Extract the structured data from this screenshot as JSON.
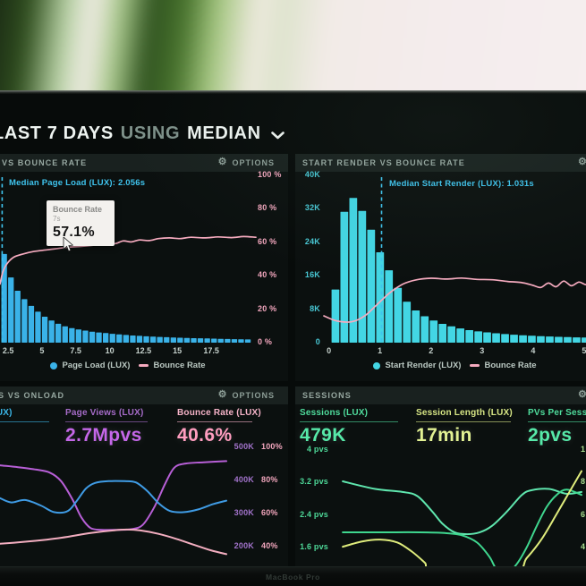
{
  "header": {
    "range": "LAST 7 DAYS",
    "using": "USING",
    "aggregation": "MEDIAN"
  },
  "options_label": "OPTIONS",
  "icons": {
    "gear": "⚙"
  },
  "bezel": {
    "brand": "MacBook Pro"
  },
  "theme": {
    "screen_bg": "#070b0a",
    "panel_bg": "#0b100f",
    "panel_head_bg": "#19211f"
  },
  "chart_data": [
    {
      "id": "page-load-vs-bounce-rate",
      "type": "bar",
      "panel_title": "VS BOUNCE RATE",
      "annotation": {
        "text": "Median Page Load (LUX): 2.056s",
        "x": 2.056,
        "color": "#3fc4ee"
      },
      "tooltip": {
        "title": "Bounce Rate",
        "x_label": "7s",
        "value": "57.1%"
      },
      "x_axis": {
        "min": 1.9,
        "max": 20.8,
        "ticks": [
          "2.5",
          "5",
          "7.5",
          "10",
          "12.5",
          "15",
          "17.5"
        ],
        "tick_values": [
          2.5,
          5,
          7.5,
          10,
          12.5,
          15,
          17.5
        ]
      },
      "y_axis_right": {
        "labels": [
          "100 %",
          "80 %",
          "60 %",
          "40 %",
          "20 %",
          "0 %"
        ],
        "color": "#f2a6bd"
      },
      "bars": {
        "name": "Page Load (LUX)",
        "color": "#3ab2e8",
        "start": 2.0,
        "step": 0.5,
        "unit": "pct",
        "max": 100,
        "values": [
          53,
          39,
          31,
          26,
          22,
          18.5,
          15.5,
          13.2,
          11.3,
          9.8,
          8.7,
          7.9,
          7.2,
          6.6,
          6.1,
          5.7,
          5.3,
          4.9,
          4.6,
          4.3,
          4.05,
          3.8,
          3.6,
          3.4,
          3.25,
          3.1,
          2.95,
          2.8,
          2.7,
          2.6,
          2.5,
          2.4,
          2.3,
          2.2,
          2.1,
          2.0,
          1.9
        ]
      },
      "line": {
        "name": "Bounce Rate",
        "color": "#f6abbf",
        "points": [
          [
            1.9,
            35
          ],
          [
            2.1,
            42
          ],
          [
            2.4,
            47
          ],
          [
            2.9,
            51
          ],
          [
            3.6,
            53
          ],
          [
            4.4,
            54.5
          ],
          [
            5.4,
            55.5
          ],
          [
            6.2,
            56.3
          ],
          [
            7,
            57.1
          ],
          [
            8,
            57.6
          ],
          [
            9,
            58.4
          ],
          [
            9.8,
            59.6
          ],
          [
            10.4,
            59.2
          ],
          [
            11,
            60.8
          ],
          [
            11.6,
            60.2
          ],
          [
            12.2,
            61.4
          ],
          [
            12.9,
            61
          ],
          [
            13.6,
            62.2
          ],
          [
            14.4,
            62.6
          ],
          [
            15.2,
            62.2
          ],
          [
            16,
            63
          ],
          [
            17,
            62.6
          ],
          [
            18,
            63.2
          ],
          [
            19,
            62.8
          ],
          [
            19.9,
            63.4
          ],
          [
            20.8,
            63
          ]
        ]
      },
      "legend": [
        {
          "label": "Page Load (LUX)",
          "marker": "dot",
          "color": "#3ab2e8"
        },
        {
          "label": "Bounce Rate",
          "marker": "dash",
          "color": "#f6abbf"
        }
      ]
    },
    {
      "id": "start-render-vs-bounce-rate",
      "type": "bar",
      "panel_title": "START RENDER VS BOUNCE RATE",
      "annotation": {
        "text": "Median Start Render (LUX): 1.031s",
        "x": 1.031,
        "color": "#3fc4ee"
      },
      "x_axis": {
        "min": -0.1,
        "max": 5.3,
        "ticks": [
          "0",
          "1",
          "2",
          "3",
          "4",
          "5"
        ],
        "tick_values": [
          0,
          1,
          2,
          3,
          4,
          5
        ]
      },
      "y_axis_left": {
        "labels": [
          "40K",
          "32K",
          "24K",
          "16K",
          "8K",
          "0"
        ],
        "color": "#49c9d6"
      },
      "bars": {
        "name": "Start Render (LUX)",
        "color": "#43d6e4",
        "start": 0.05,
        "step": 0.175,
        "unit": "K",
        "max": 40,
        "values": [
          12.7,
          31.3,
          34.6,
          31.5,
          27,
          21.6,
          17.3,
          13.1,
          9.8,
          7.7,
          6.3,
          5.3,
          4.5,
          3.9,
          3.4,
          3.0,
          2.7,
          2.45,
          2.25,
          2.05,
          1.9,
          1.78,
          1.67,
          1.57,
          1.48,
          1.4,
          1.33,
          1.27,
          1.21,
          1.16
        ]
      },
      "line": {
        "name": "Bounce Rate",
        "color": "#f6abbf",
        "points": [
          [
            -0.1,
            16
          ],
          [
            0.15,
            13
          ],
          [
            0.45,
            12.5
          ],
          [
            0.7,
            16
          ],
          [
            0.95,
            23
          ],
          [
            1.2,
            30
          ],
          [
            1.45,
            35
          ],
          [
            1.7,
            37.5
          ],
          [
            2.0,
            38.5
          ],
          [
            2.3,
            38
          ],
          [
            2.6,
            38.6
          ],
          [
            2.9,
            37.8
          ],
          [
            3.2,
            37.6
          ],
          [
            3.5,
            36.6
          ],
          [
            3.8,
            35.8
          ],
          [
            4.0,
            34.2
          ],
          [
            4.15,
            33
          ],
          [
            4.3,
            35.6
          ],
          [
            4.45,
            33.4
          ],
          [
            4.6,
            36.8
          ],
          [
            4.75,
            34
          ],
          [
            4.9,
            36.2
          ],
          [
            5.05,
            34.6
          ],
          [
            5.3,
            35.4
          ]
        ]
      },
      "legend": [
        {
          "label": "Start Render (LUX)",
          "marker": "dot",
          "color": "#43d6e4"
        },
        {
          "label": "Bounce Rate",
          "marker": "dash",
          "color": "#f6abbf"
        }
      ]
    },
    {
      "id": "onload",
      "type": "line",
      "panel_title": "S VS ONLOAD",
      "metrics": [
        {
          "label": "(LUX)",
          "value": "",
          "label_color": "#3bb7e8",
          "value_color": "#3bb7e8"
        },
        {
          "label": "Page Views (LUX)",
          "value": "2.7Mpvs",
          "label_color": "#a66cc9",
          "value_color": "#c467e8"
        },
        {
          "label": "Bounce Rate (LUX)",
          "value": "40.6%",
          "label_color": "#f6b3c8",
          "value_color": "#ff9dbf"
        }
      ],
      "y_axis_right_k": {
        "labels": [
          "500K",
          "400K",
          "300K",
          "200K"
        ],
        "color": "#a273cb"
      },
      "y_axis_right_pct": {
        "labels": [
          "100%",
          "80%",
          "60%",
          "40%"
        ],
        "color": "#f2a6bd"
      },
      "series": [
        {
          "name": "purple-line",
          "color": "#b75fd6",
          "points": [
            [
              0,
              0.17
            ],
            [
              0.08,
              0.185
            ],
            [
              0.16,
              0.205
            ],
            [
              0.22,
              0.23
            ],
            [
              0.27,
              0.3
            ],
            [
              0.32,
              0.45
            ],
            [
              0.36,
              0.6
            ],
            [
              0.4,
              0.685
            ],
            [
              0.45,
              0.7
            ],
            [
              0.52,
              0.7
            ],
            [
              0.58,
              0.695
            ],
            [
              0.63,
              0.66
            ],
            [
              0.68,
              0.52
            ],
            [
              0.73,
              0.32
            ],
            [
              0.77,
              0.19
            ],
            [
              0.82,
              0.155
            ],
            [
              0.9,
              0.145
            ],
            [
              1,
              0.135
            ]
          ]
        },
        {
          "name": "blue-line",
          "color": "#3f9be4",
          "points": [
            [
              0,
              0.44
            ],
            [
              0.05,
              0.475
            ],
            [
              0.11,
              0.455
            ],
            [
              0.18,
              0.5
            ],
            [
              0.24,
              0.555
            ],
            [
              0.3,
              0.545
            ],
            [
              0.34,
              0.46
            ],
            [
              0.38,
              0.36
            ],
            [
              0.42,
              0.315
            ],
            [
              0.48,
              0.3
            ],
            [
              0.55,
              0.3
            ],
            [
              0.6,
              0.31
            ],
            [
              0.65,
              0.38
            ],
            [
              0.7,
              0.48
            ],
            [
              0.75,
              0.545
            ],
            [
              0.81,
              0.555
            ],
            [
              0.88,
              0.53
            ],
            [
              0.94,
              0.49
            ],
            [
              1,
              0.46
            ]
          ]
        },
        {
          "name": "pink-line",
          "color": "#f3aec0",
          "points": [
            [
              0,
              0.815
            ],
            [
              0.1,
              0.8
            ],
            [
              0.2,
              0.782
            ],
            [
              0.3,
              0.757
            ],
            [
              0.4,
              0.726
            ],
            [
              0.5,
              0.705
            ],
            [
              0.56,
              0.698
            ],
            [
              0.62,
              0.705
            ],
            [
              0.7,
              0.733
            ],
            [
              0.78,
              0.775
            ],
            [
              0.86,
              0.825
            ],
            [
              0.93,
              0.868
            ],
            [
              1,
              0.9
            ]
          ]
        }
      ]
    },
    {
      "id": "sessions",
      "type": "line",
      "panel_title": "SESSIONS",
      "metrics": [
        {
          "label": "Sessions (LUX)",
          "value": "479K",
          "label_color": "#4fdc9c",
          "value_color": "#57e9a9"
        },
        {
          "label": "Session Length (LUX)",
          "value": "17min",
          "label_color": "#d7e685",
          "value_color": "#e2f193"
        },
        {
          "label": "PVs Per Session",
          "value": "2pvs",
          "label_color": "#4fdc9c",
          "value_color": "#57e9a9"
        }
      ],
      "y_axis_left": {
        "labels": [
          "4 pvs",
          "3.2 pvs",
          "2.4 pvs",
          "1.6 pvs"
        ],
        "color": "#4ed898"
      },
      "y_axis_right_partial": {
        "labels": [
          "1",
          "8",
          "6",
          "4"
        ],
        "color": "#a8dc8e"
      },
      "series": [
        {
          "name": "mint-line",
          "color": "#5fe6ae",
          "points": [
            [
              0.04,
              0.286
            ],
            [
              0.17,
              0.35
            ],
            [
              0.28,
              0.375
            ],
            [
              0.34,
              0.41
            ],
            [
              0.4,
              0.54
            ],
            [
              0.44,
              0.64
            ],
            [
              0.49,
              0.715
            ],
            [
              0.54,
              0.73
            ],
            [
              0.59,
              0.715
            ],
            [
              0.64,
              0.66
            ],
            [
              0.7,
              0.54
            ],
            [
              0.76,
              0.4
            ],
            [
              0.8,
              0.36
            ],
            [
              0.87,
              0.35
            ],
            [
              0.94,
              0.39
            ],
            [
              1,
              0.375
            ]
          ]
        },
        {
          "name": "green-line",
          "color": "#3fd78f",
          "points": [
            [
              0.04,
              0.714
            ],
            [
              0.2,
              0.714
            ],
            [
              0.35,
              0.714
            ],
            [
              0.45,
              0.72
            ],
            [
              0.52,
              0.74
            ],
            [
              0.58,
              0.8
            ],
            [
              0.63,
              0.92
            ],
            [
              0.66,
              1.03
            ],
            [
              0.7,
              1.06
            ],
            [
              0.74,
              0.98
            ],
            [
              0.78,
              0.84
            ],
            [
              0.82,
              0.66
            ],
            [
              0.86,
              0.5
            ],
            [
              0.9,
              0.4
            ],
            [
              0.94,
              0.355
            ],
            [
              1,
              0.4
            ]
          ]
        },
        {
          "name": "yellow-line",
          "color": "#dfec7c",
          "points": [
            [
              0.04,
              0.835
            ],
            [
              0.12,
              0.79
            ],
            [
              0.19,
              0.775
            ],
            [
              0.26,
              0.8
            ],
            [
              0.32,
              0.88
            ],
            [
              0.37,
              0.97
            ],
            [
              0.41,
              1.05
            ],
            [
              0.72,
              1.06
            ],
            [
              0.78,
              0.93
            ],
            [
              0.84,
              0.77
            ],
            [
              0.9,
              0.56
            ],
            [
              0.95,
              0.38
            ],
            [
              1,
              0.2
            ]
          ]
        }
      ]
    }
  ]
}
